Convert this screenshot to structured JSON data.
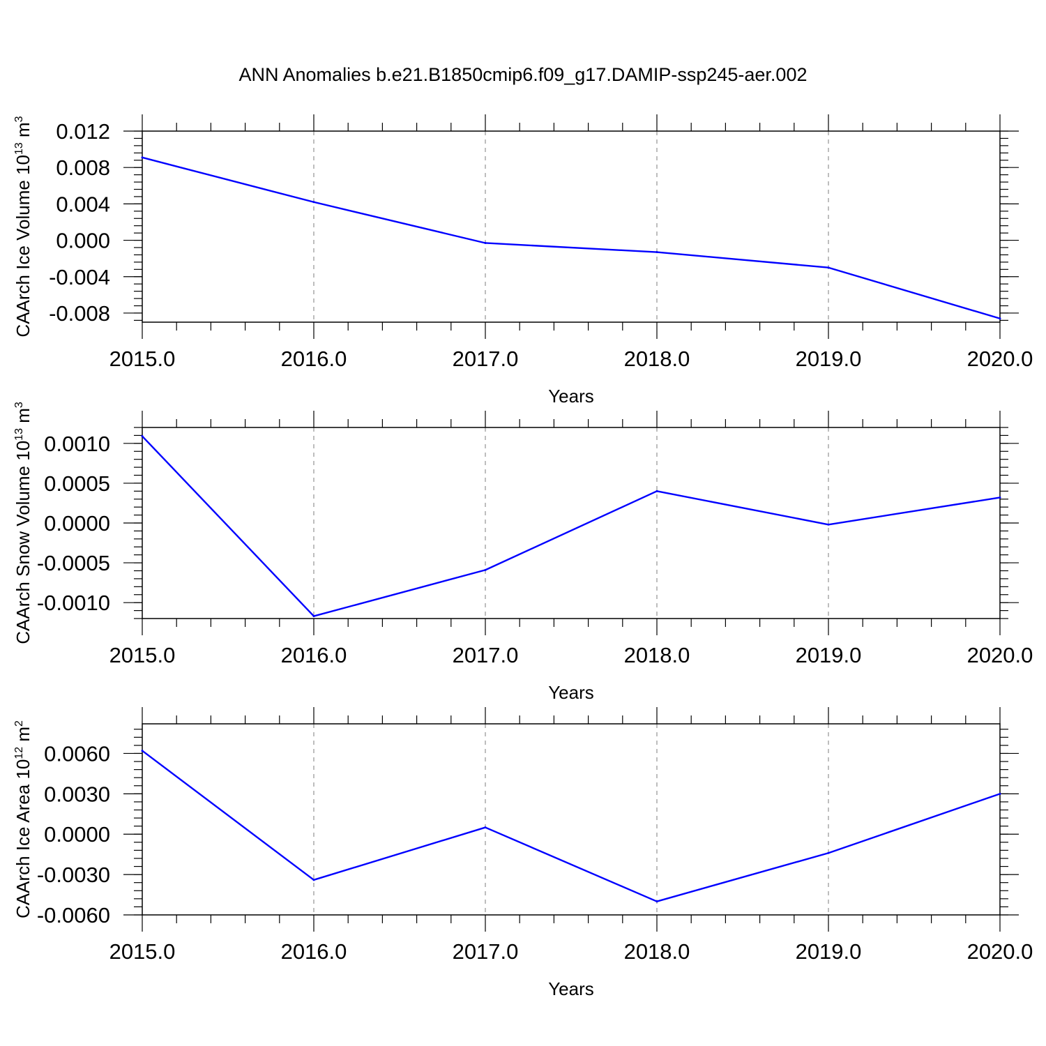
{
  "title": "ANN Anomalies b.e21.B1850cmip6.f09_g17.DAMIP-ssp245-aer.002",
  "line_color": "#0000ff",
  "chart_data": [
    {
      "type": "line",
      "title": "",
      "xlabel": "Years",
      "ylabel_base": "CAArch Ice Volume 10",
      "ylabel_exp": "13",
      "ylabel_unit": " m",
      "ylabel_unit_exp": "3",
      "x": [
        2015,
        2016,
        2017,
        2018,
        2019,
        2020
      ],
      "y": [
        0.0091,
        0.0042,
        -0.0003,
        -0.0013,
        -0.003,
        -0.0086
      ],
      "xlim": [
        2015,
        2020
      ],
      "ylim": [
        -0.009,
        0.012
      ],
      "yticks": [
        0.012,
        0.008,
        0.004,
        0.0,
        -0.004,
        -0.008
      ],
      "ytick_labels": [
        "0.012",
        "0.008",
        "0.004",
        "0.000",
        "-0.004",
        "-0.008"
      ],
      "xtick_labels": [
        "2015.0",
        "2016.0",
        "2017.0",
        "2018.0",
        "2019.0",
        "2020.0"
      ],
      "grid": "vertical dashed"
    },
    {
      "type": "line",
      "title": "",
      "xlabel": "Years",
      "ylabel_base": "CAArch Snow Volume 10",
      "ylabel_exp": "13",
      "ylabel_unit": " m",
      "ylabel_unit_exp": "3",
      "x": [
        2015,
        2016,
        2017,
        2018,
        2019,
        2020
      ],
      "y": [
        0.00109,
        -0.00117,
        -0.00059,
        0.0004,
        -2e-05,
        0.00032
      ],
      "xlim": [
        2015,
        2020
      ],
      "ylim": [
        -0.0012,
        0.0012
      ],
      "yticks": [
        0.001,
        0.0005,
        0.0,
        -0.0005,
        -0.001
      ],
      "ytick_labels": [
        "0.0010",
        "0.0005",
        "0.0000",
        "-0.0005",
        "-0.0010"
      ],
      "xtick_labels": [
        "2015.0",
        "2016.0",
        "2017.0",
        "2018.0",
        "2019.0",
        "2020.0"
      ],
      "grid": "vertical dashed"
    },
    {
      "type": "line",
      "title": "",
      "xlabel": "Years",
      "ylabel_base": "CAArch Ice Area 10",
      "ylabel_exp": "12",
      "ylabel_unit": " m",
      "ylabel_unit_exp": "2",
      "x": [
        2015,
        2016,
        2017,
        2018,
        2019,
        2020
      ],
      "y": [
        0.0062,
        -0.0034,
        0.0005,
        -0.005,
        -0.0014,
        0.003
      ],
      "xlim": [
        2015,
        2020
      ],
      "ylim": [
        -0.006,
        0.0082
      ],
      "yticks": [
        0.006,
        0.003,
        0.0,
        -0.003,
        -0.006
      ],
      "ytick_labels": [
        "0.0060",
        "0.0030",
        "0.0000",
        "-0.0030",
        "-0.0060"
      ],
      "xtick_labels": [
        "2015.0",
        "2016.0",
        "2017.0",
        "2018.0",
        "2019.0",
        "2020.0"
      ],
      "grid": "vertical dashed"
    }
  ]
}
